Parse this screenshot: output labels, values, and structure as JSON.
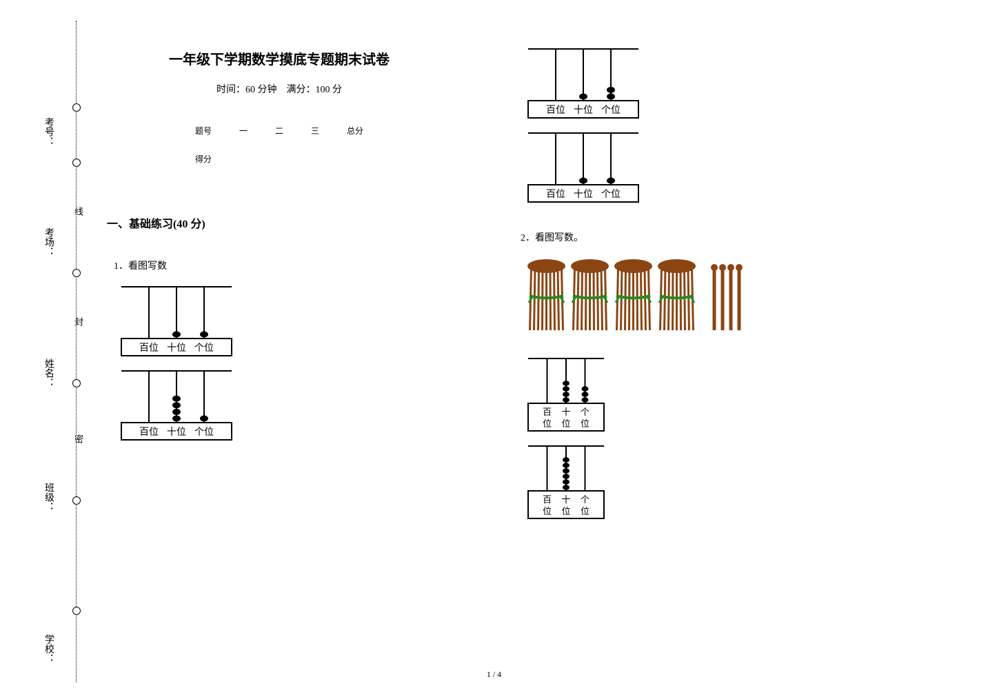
{
  "sidebar": {
    "labels": [
      "考号：",
      "考场：",
      "姓名：",
      "班级：",
      "学校："
    ]
  },
  "sealline": {
    "chars": [
      "密",
      "封",
      "线"
    ]
  },
  "title": "一年级下学期数学摸底专题期末试卷",
  "subtitle": "时间：60 分钟　满分：100 分",
  "scoretable": {
    "row1": [
      "题号",
      "一",
      "二",
      "三",
      "总分"
    ],
    "row2": [
      "得分",
      "",
      "",
      "",
      ""
    ]
  },
  "section1": {
    "title": "一、基础练习(40 分)",
    "q1_label": "1．看图写数",
    "q2_label": "2．看图写数。"
  },
  "abacus": {
    "place_labels": [
      "百位",
      "十位",
      "个位"
    ],
    "place_labels_short": [
      "百位",
      "十位",
      "个位"
    ],
    "a1_beads": [
      0,
      1,
      1
    ],
    "a2_beads": [
      0,
      4,
      1
    ],
    "a3_beads": [
      0,
      1,
      2
    ],
    "a4_beads": [
      0,
      1,
      1
    ],
    "a5_beads": [
      0,
      4,
      3
    ],
    "a6_beads": [
      0,
      6,
      0
    ],
    "bead_color": "#000000",
    "line_color": "#000000",
    "label_fontsize": 14,
    "label_fontsize_small": 13
  },
  "bundles": {
    "bundle_count": 4,
    "loose_count": 4,
    "bundle_color": "#8B4513",
    "tie_color": "#228B22"
  },
  "footer": "1 / 4"
}
